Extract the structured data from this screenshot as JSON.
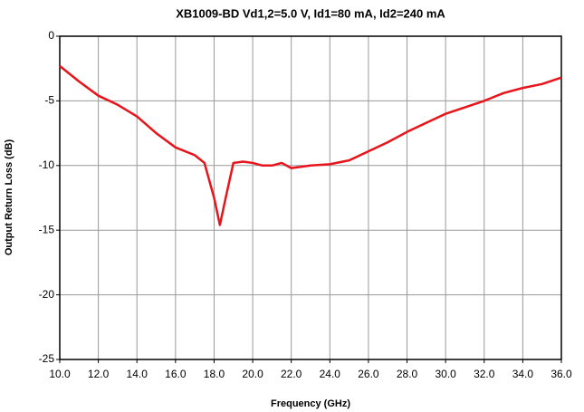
{
  "chart_data": {
    "type": "line",
    "title": "XB1009-BD Vd1,2=5.0 V, Id1=80 mA, Id2=240 mA",
    "xlabel": "Frequency (GHz)",
    "ylabel": "Output Return Loss (dB)",
    "xlim": [
      10,
      36
    ],
    "xticks": [
      {
        "value": 10,
        "label": "10.0"
      },
      {
        "value": 12,
        "label": "12.0"
      },
      {
        "value": 14,
        "label": "14.0"
      },
      {
        "value": 16,
        "label": "16.0"
      },
      {
        "value": 18,
        "label": "18.0"
      },
      {
        "value": 20,
        "label": "20.0"
      },
      {
        "value": 22,
        "label": "22.0"
      },
      {
        "value": 24,
        "label": "24.0"
      },
      {
        "value": 26,
        "label": "26.0"
      },
      {
        "value": 28,
        "label": "28.0"
      },
      {
        "value": 30,
        "label": "30.0"
      },
      {
        "value": 32,
        "label": "32.0"
      },
      {
        "value": 34,
        "label": "34.0"
      },
      {
        "value": 36,
        "label": "36.0"
      }
    ],
    "ylim": [
      -25,
      0
    ],
    "yticks": [
      0,
      -5,
      -10,
      -15,
      -20,
      -25
    ],
    "grid": true,
    "x": [
      10,
      11,
      12,
      13,
      14,
      15,
      16,
      17,
      17.5,
      18,
      18.3,
      18.6,
      19,
      19.5,
      20,
      20.5,
      21,
      21.5,
      22,
      22.5,
      23,
      24,
      25,
      26,
      27,
      28,
      29,
      30,
      31,
      32,
      33,
      34,
      35,
      36
    ],
    "series": [
      {
        "color": "#e8141b",
        "values": [
          -2.3,
          -3.5,
          -4.6,
          -5.3,
          -6.2,
          -7.5,
          -8.6,
          -9.2,
          -9.8,
          -12.5,
          -14.6,
          -12.5,
          -9.8,
          -9.7,
          -9.8,
          -10.0,
          -10.0,
          -9.8,
          -10.2,
          -10.1,
          -10.0,
          -9.9,
          -9.6,
          -8.9,
          -8.2,
          -7.4,
          -6.7,
          -6.0,
          -5.5,
          -5.0,
          -4.4,
          -4.0,
          -3.7,
          -3.2
        ]
      }
    ]
  }
}
